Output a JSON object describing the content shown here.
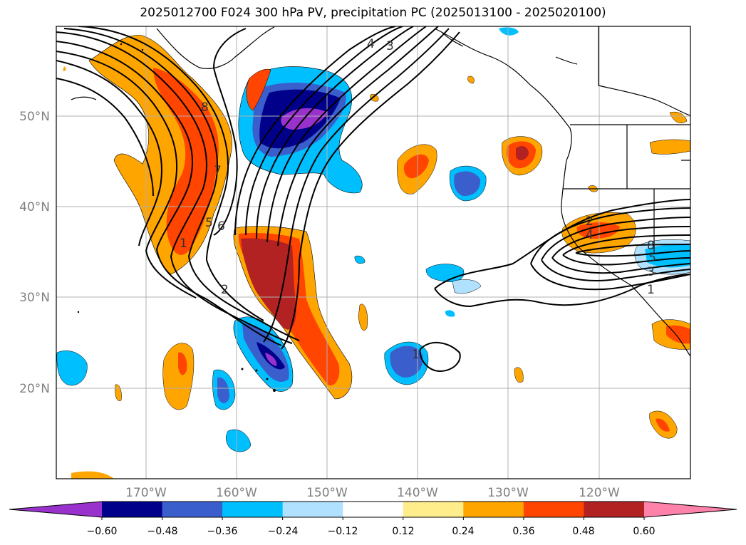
{
  "title": "2025012700 F024 300 hPa PV, precipitation PC (2025013100 - 2025020100)",
  "latitude_labels": [
    "50°N",
    "40°N",
    "30°N",
    "20°N"
  ],
  "longitude_labels": [
    "170°W",
    "160°W",
    "150°W",
    "140°W",
    "130°W",
    "120°W"
  ],
  "colorbar": {
    "tick_labels": [
      "−0.60",
      "−0.48",
      "−0.36",
      "−0.24",
      "−0.12",
      "0.12",
      "0.24",
      "0.36",
      "0.48",
      "0.60"
    ],
    "colors": [
      "#9932cc",
      "#00008b",
      "#3a5fcd",
      "#00bfff",
      "#b0e2ff",
      "#ffffff",
      "#ffec8b",
      "#ffa500",
      "#ff4500",
      "#b22222",
      "#ff82ab"
    ],
    "extend": "both"
  },
  "contour_labels": [
    "8",
    "7",
    "5",
    "6",
    "1",
    "2",
    "4",
    "3",
    "2",
    "4",
    "8",
    "5",
    "3",
    "1",
    "1"
  ],
  "colors": {
    "grid": "#b0b0b0",
    "coast": "#000000",
    "contour": "#000000"
  }
}
